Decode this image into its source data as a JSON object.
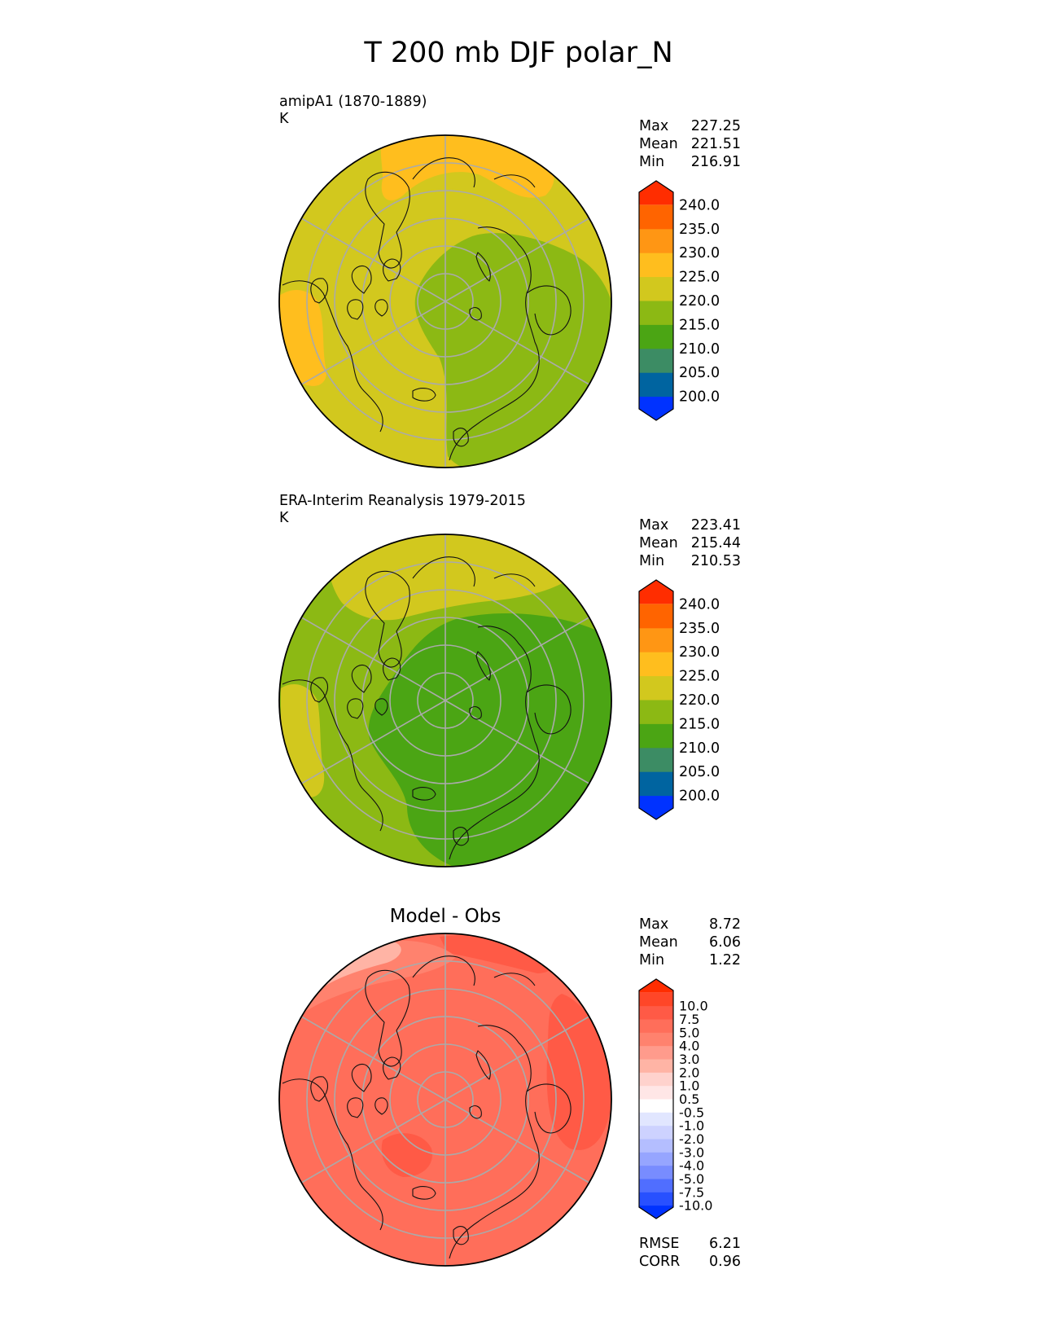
{
  "figure": {
    "title": "T 200 mb DJF polar_N"
  },
  "panels": [
    {
      "title": "amipA1 (1870-1889)",
      "units": "K",
      "centered_title": "",
      "stats": [
        {
          "label": "Max",
          "value": "227.25"
        },
        {
          "label": "Mean",
          "value": "221.51"
        },
        {
          "label": "Min",
          "value": "216.91"
        }
      ],
      "colorbar": {
        "colors": [
          "#0032ff",
          "#0064a0",
          "#3c8c64",
          "#4ba514",
          "#8cb914",
          "#d2c81e",
          "#ffbe1e",
          "#ff9614",
          "#ff6400",
          "#ff2d00"
        ],
        "ticks": [
          "200.0",
          "205.0",
          "210.0",
          "215.0",
          "220.0",
          "225.0",
          "230.0",
          "235.0",
          "240.0"
        ]
      },
      "map": {
        "base": "#d2c81e",
        "regions": [
          {
            "color": "#8cb914",
            "level": "215-220"
          },
          {
            "color": "#ffbe1e",
            "level": "225-230"
          }
        ]
      }
    },
    {
      "title": "ERA-Interim Reanalysis 1979-2015",
      "units": "K",
      "centered_title": "",
      "stats": [
        {
          "label": "Max",
          "value": "223.41"
        },
        {
          "label": "Mean",
          "value": "215.44"
        },
        {
          "label": "Min",
          "value": "210.53"
        }
      ],
      "colorbar": {
        "colors": [
          "#0032ff",
          "#0064a0",
          "#3c8c64",
          "#4ba514",
          "#8cb914",
          "#d2c81e",
          "#ffbe1e",
          "#ff9614",
          "#ff6400",
          "#ff2d00"
        ],
        "ticks": [
          "200.0",
          "205.0",
          "210.0",
          "215.0",
          "220.0",
          "225.0",
          "230.0",
          "235.0",
          "240.0"
        ]
      },
      "map": {
        "base": "#8cb914",
        "regions": [
          {
            "color": "#4ba514",
            "level": "210-215"
          },
          {
            "color": "#d2c81e",
            "level": "220-225"
          }
        ]
      }
    },
    {
      "title": "",
      "units": "",
      "centered_title": "Model - Obs",
      "stats": [
        {
          "label": "Max",
          "value": "8.72"
        },
        {
          "label": "Mean",
          "value": "6.06"
        },
        {
          "label": "Min",
          "value": "1.22"
        }
      ],
      "extra_stats": [
        {
          "label": "RMSE",
          "value": "6.21"
        },
        {
          "label": "CORR",
          "value": "0.96"
        }
      ],
      "colorbar": {
        "colors": [
          "#0032ff",
          "#2850ff",
          "#506eff",
          "#788cff",
          "#96a5ff",
          "#b4beff",
          "#cdd2ff",
          "#e1e6ff",
          "#ffffff",
          "#ffe6e6",
          "#ffd2cd",
          "#ffb4a5",
          "#ff9b8c",
          "#ff826e",
          "#ff6e5a",
          "#ff5a46",
          "#ff4628",
          "#ff2d00"
        ],
        "ticks": [
          "-10.0",
          "-7.5",
          "-5.0",
          "-4.0",
          "-3.0",
          "-2.0",
          "-1.0",
          "-0.5",
          "0.5",
          "1.0",
          "2.0",
          "3.0",
          "4.0",
          "5.0",
          "7.5",
          "10.0"
        ]
      },
      "map": {
        "base": "#ff6e5a",
        "regions": [
          {
            "color": "#ff5a46",
            "level": "5.0-7.5"
          },
          {
            "color": "#ff826e",
            "level": "3.0-4.0"
          },
          {
            "color": "#ffb4a5",
            "level": "1.0-2.0"
          }
        ]
      }
    }
  ]
}
